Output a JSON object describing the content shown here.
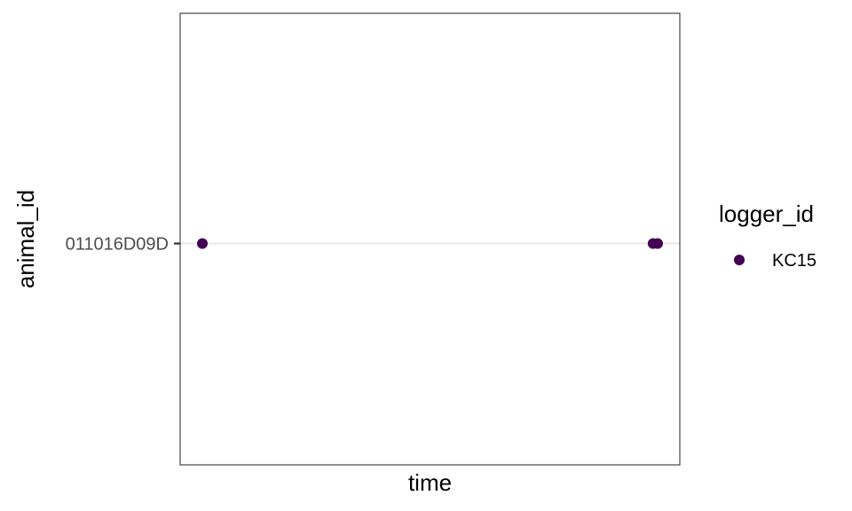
{
  "chart_data": {
    "type": "scatter",
    "title": "",
    "xlabel": "time",
    "ylabel": "animal_id",
    "y_categories": [
      "011016D09D"
    ],
    "x_ticks_shown": false,
    "grid": "horizontal major lines only",
    "legend": {
      "title": "logger_id",
      "placement": "right",
      "entries": [
        {
          "label": "KC15",
          "color": "#440154"
        }
      ]
    },
    "xlim": [
      0,
      1
    ],
    "series": [
      {
        "name": "KC15",
        "color": "#440154",
        "points": [
          {
            "x": 0.0,
            "y": "011016D09D"
          },
          {
            "x": 0.99,
            "y": "011016D09D"
          },
          {
            "x": 1.0,
            "y": "011016D09D"
          }
        ]
      }
    ]
  }
}
